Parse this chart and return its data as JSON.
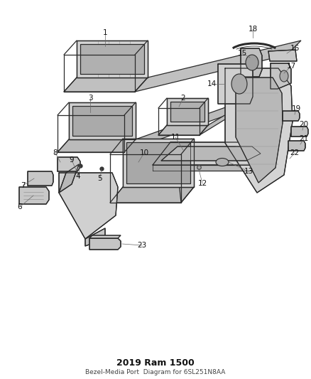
{
  "title": "2019 Ram 1500",
  "subtitle": "Bezel-Media Port",
  "part_number": "Diagram for 6SL251N8AA",
  "bg_color": "#ffffff",
  "fig_w": 4.38,
  "fig_h": 5.33,
  "dpi": 100,
  "label_fs": 7.5,
  "title_fs": 9,
  "sub_fs": 7.5,
  "pn_fs": 6.5,
  "lc": "#2a2a2a",
  "fc_light": "#e8e8e8",
  "fc_mid": "#d0d0d0",
  "fc_dark": "#b8b8b8",
  "lw_main": 0.9,
  "lw_inner": 0.55,
  "lw_leader": 0.5,
  "leader_color": "#666666",
  "label_color": "#111111"
}
